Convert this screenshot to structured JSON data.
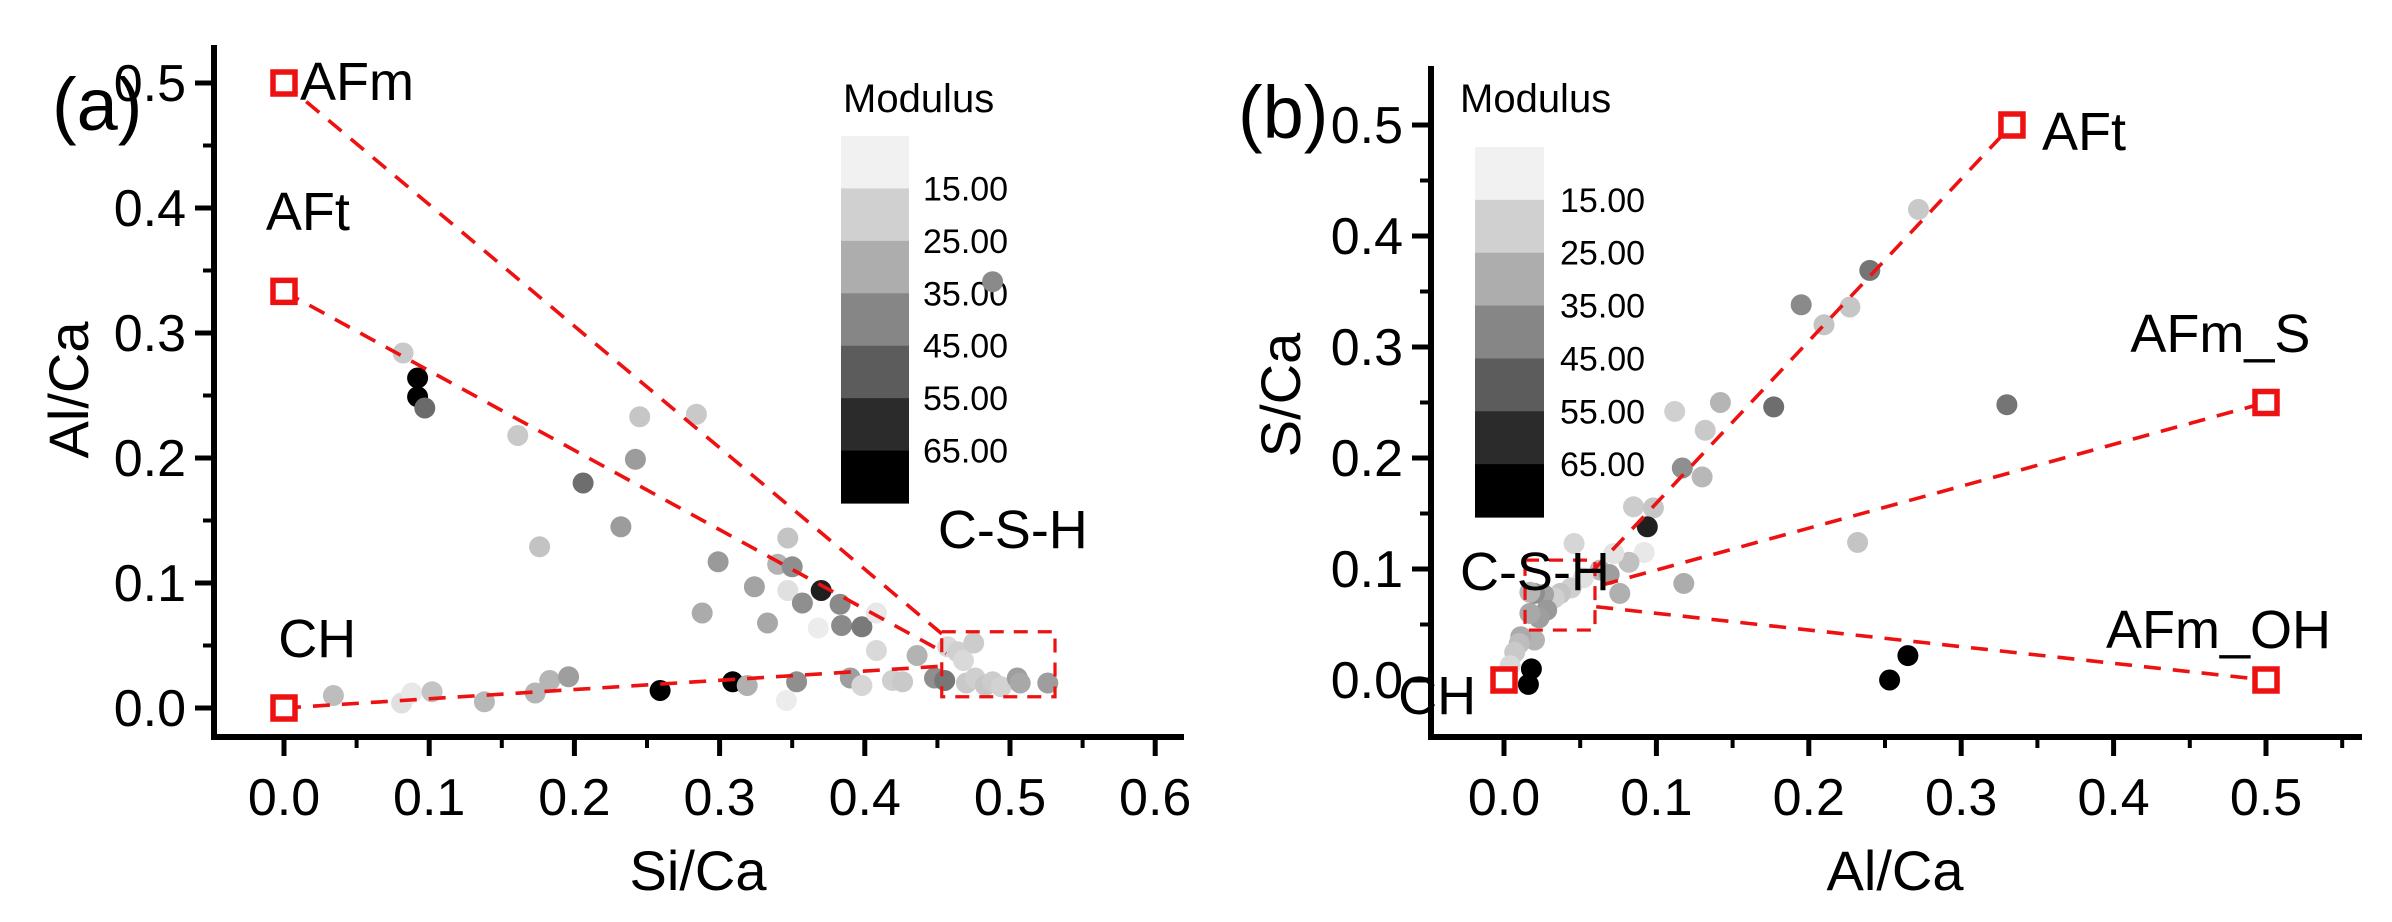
{
  "figure": {
    "background": "#ffffff",
    "accent_red": "#ee1111",
    "text_color": "#000000"
  },
  "chart_data": [
    {
      "id": "a",
      "type": "scatter",
      "panel_label": "(a)",
      "xlabel": "Si/Ca",
      "ylabel": "Al/Ca",
      "xlim": [
        -0.05,
        0.62
      ],
      "ylim": [
        -0.023,
        0.534
      ],
      "grid": false,
      "x_tick_values": [
        0.0,
        0.1,
        0.2,
        0.3,
        0.4,
        0.5,
        0.6
      ],
      "x_tick_labels": [
        "0.0",
        "0.1",
        "0.2",
        "0.3",
        "0.4",
        "0.5",
        "0.6"
      ],
      "x_minor_ticks": [
        0.05,
        0.15,
        0.25,
        0.35,
        0.45,
        0.55
      ],
      "y_tick_values": [
        0.0,
        0.1,
        0.2,
        0.3,
        0.4,
        0.5
      ],
      "y_tick_labels": [
        "0.0",
        "0.1",
        "0.2",
        "0.3",
        "0.4",
        "0.5"
      ],
      "y_minor_ticks": [
        0.05,
        0.15,
        0.25,
        0.35,
        0.45
      ],
      "colorbar": {
        "title": "Modulus",
        "boundary_labels": [
          "15.00",
          "25.00",
          "35.00",
          "45.00",
          "55.00",
          "65.00"
        ],
        "band_shades": [
          "#f1f1f1",
          "#d0d0d0",
          "#adadad",
          "#868686",
          "#5c5c5c",
          "#2b2b2b",
          "#000000"
        ]
      },
      "reference_points": [
        {
          "label": "AFm",
          "x": 0.0,
          "y": 0.5,
          "label_pos": [
            0.011,
            0.4865
          ]
        },
        {
          "label": "AFt",
          "x": 0.0,
          "y": 0.3333,
          "label_pos": [
            -0.0125,
            0.3825
          ]
        },
        {
          "label": "CH",
          "x": 0.0,
          "y": 0.0,
          "label_pos": [
            -0.004,
            0.0408
          ]
        }
      ],
      "tie_lines": [
        {
          "name": "AFm-to-CSH",
          "from": [
            0.0,
            0.5
          ],
          "to": [
            0.456,
            0.0565
          ]
        },
        {
          "name": "AFt-to-CSH",
          "from": [
            0.0,
            0.3333
          ],
          "to": [
            0.456,
            0.0435
          ]
        },
        {
          "name": "CH-to-CSH",
          "from": [
            0.0,
            0.0
          ],
          "to": [
            0.4535,
            0.0335
          ]
        }
      ],
      "csh_region": {
        "label": "C-S-H",
        "x_range": [
          0.453,
          0.531
        ],
        "y_range": [
          0.009,
          0.061
        ],
        "label_pos": [
          0.4503,
          0.128
        ]
      },
      "points": [
        [
          0.082,
          0.284,
          "#c9c9c9"
        ],
        [
          0.092,
          0.264,
          "#000000"
        ],
        [
          0.092,
          0.249,
          "#000000"
        ],
        [
          0.097,
          0.24,
          "#6b6b6b"
        ],
        [
          0.161,
          0.218,
          "#c9c9c9"
        ],
        [
          0.245,
          0.233,
          "#c6c6c6"
        ],
        [
          0.284,
          0.235,
          "#c9c9c9"
        ],
        [
          0.242,
          0.199,
          "#9c9c9c"
        ],
        [
          0.206,
          0.18,
          "#6e6e6e"
        ],
        [
          0.232,
          0.145,
          "#9c9c9c"
        ],
        [
          0.176,
          0.129,
          "#c3c3c3"
        ],
        [
          0.347,
          0.136,
          "#c4c4c4"
        ],
        [
          0.34,
          0.115,
          "#b3b3b3"
        ],
        [
          0.35,
          0.113,
          "#8f8f8f"
        ],
        [
          0.299,
          0.117,
          "#9a9a9a"
        ],
        [
          0.324,
          0.097,
          "#a3a3a3"
        ],
        [
          0.288,
          0.076,
          "#ababab"
        ],
        [
          0.347,
          0.094,
          "#e0e0e0"
        ],
        [
          0.37,
          0.094,
          "#1f1f1f"
        ],
        [
          0.357,
          0.084,
          "#8f8f8f"
        ],
        [
          0.383,
          0.083,
          "#8a8a8a"
        ],
        [
          0.384,
          0.066,
          "#8a8a8a"
        ],
        [
          0.398,
          0.065,
          "#7a7a7a"
        ],
        [
          0.333,
          0.068,
          "#a8a8a8"
        ],
        [
          0.368,
          0.064,
          "#ececec"
        ],
        [
          0.408,
          0.076,
          "#e8e8e8"
        ],
        [
          0.408,
          0.046,
          "#d9d9d9"
        ],
        [
          0.436,
          0.042,
          "#b3b3b3"
        ],
        [
          0.488,
          0.341,
          "#8a8a8a"
        ],
        [
          0.034,
          0.01,
          "#bdbdbd"
        ],
        [
          0.081,
          0.004,
          "#e0e0e0"
        ],
        [
          0.088,
          0.012,
          "#e8e8e8"
        ],
        [
          0.102,
          0.013,
          "#c4c4c4"
        ],
        [
          0.138,
          0.005,
          "#b8b8b8"
        ],
        [
          0.173,
          0.012,
          "#b5b5b5"
        ],
        [
          0.183,
          0.022,
          "#b5b5b5"
        ],
        [
          0.196,
          0.025,
          "#9e9e9e"
        ],
        [
          0.259,
          0.014,
          "#000000"
        ],
        [
          0.309,
          0.021,
          "#000000"
        ],
        [
          0.319,
          0.018,
          "#b0b0b0"
        ],
        [
          0.353,
          0.021,
          "#8f8f8f"
        ],
        [
          0.346,
          0.006,
          "#ececec"
        ],
        [
          0.39,
          0.024,
          "#9e9e9e"
        ],
        [
          0.398,
          0.018,
          "#d6d6d6"
        ],
        [
          0.419,
          0.022,
          "#cfcfcf"
        ],
        [
          0.426,
          0.021,
          "#c9c9c9"
        ],
        [
          0.448,
          0.024,
          "#8f8f8f"
        ],
        [
          0.457,
          0.049,
          "#d9d9d9"
        ],
        [
          0.464,
          0.045,
          "#d0d0d0"
        ],
        [
          0.468,
          0.038,
          "#d9d9d9"
        ],
        [
          0.475,
          0.052,
          "#cccccc"
        ],
        [
          0.455,
          0.022,
          "#777777"
        ],
        [
          0.47,
          0.02,
          "#c9c9c9"
        ],
        [
          0.476,
          0.024,
          "#cfcfcf"
        ],
        [
          0.483,
          0.018,
          "#c6c6c6"
        ],
        [
          0.488,
          0.021,
          "#cccccc"
        ],
        [
          0.494,
          0.017,
          "#d2d2d2"
        ],
        [
          0.505,
          0.024,
          "#9e9e9e"
        ],
        [
          0.507,
          0.02,
          "#a8a8a8"
        ],
        [
          0.526,
          0.02,
          "#9e9e9e"
        ]
      ]
    },
    {
      "id": "b",
      "type": "scatter",
      "panel_label": "(b)",
      "xlabel": "Al/Ca",
      "ylabel": "S/Ca",
      "xlim": [
        -0.05,
        0.563
      ],
      "ylim": [
        -0.051,
        0.551
      ],
      "grid": false,
      "x_tick_values": [
        0.0,
        0.1,
        0.2,
        0.3,
        0.4,
        0.5
      ],
      "x_tick_labels": [
        "0.0",
        "0.1",
        "0.2",
        "0.3",
        "0.4",
        "0.5"
      ],
      "x_minor_ticks": [
        0.05,
        0.15,
        0.25,
        0.35,
        0.45,
        0.55
      ],
      "y_tick_values": [
        0.0,
        0.1,
        0.2,
        0.3,
        0.4,
        0.5
      ],
      "y_tick_labels": [
        "0.0",
        "0.1",
        "0.2",
        "0.3",
        "0.4",
        "0.5"
      ],
      "y_minor_ticks": [
        0.05,
        0.15,
        0.25,
        0.35,
        0.45
      ],
      "colorbar": {
        "title": "Modulus",
        "boundary_labels": [
          "15.00",
          "25.00",
          "35.00",
          "45.00",
          "55.00",
          "65.00"
        ],
        "band_shades": [
          "#f1f1f1",
          "#d0d0d0",
          "#adadad",
          "#868686",
          "#5c5c5c",
          "#2b2b2b",
          "#000000"
        ]
      },
      "reference_points": [
        {
          "label": "AFt",
          "x": 0.3333,
          "y": 0.5,
          "label_pos": [
            0.353,
            0.4775
          ]
        },
        {
          "label": "AFm_S",
          "x": 0.5,
          "y": 0.25,
          "label_pos": [
            0.411,
            0.2955
          ]
        },
        {
          "label": "AFm_OH",
          "x": 0.5,
          "y": 0.0,
          "label_pos": [
            0.395,
            0.0288
          ]
        },
        {
          "label": "CH",
          "x": 0.0,
          "y": 0.0,
          "label_pos": [
            -0.0695,
            -0.0306
          ]
        }
      ],
      "tie_lines": [
        {
          "name": "CSH-to-AFt",
          "from": [
            0.058,
            0.098
          ],
          "to": [
            0.3333,
            0.5
          ]
        },
        {
          "name": "CSH-to-AFm_S",
          "from": [
            0.064,
            0.0855
          ],
          "to": [
            0.5,
            0.25
          ]
        },
        {
          "name": "CSH-to-AFm_OH",
          "from": [
            0.0605,
            0.066
          ],
          "to": [
            0.5,
            0.0
          ]
        }
      ],
      "csh_region": {
        "label": "C-S-H",
        "x_range": [
          0.0138,
          0.0597
        ],
        "y_range": [
          0.045,
          0.108
        ],
        "label_pos": [
          -0.0289,
          0.0812
        ]
      },
      "points": [
        [
          0.272,
          0.424,
          "#c9c9c9"
        ],
        [
          0.24,
          0.369,
          "#757575"
        ],
        [
          0.195,
          0.338,
          "#8a8a8a"
        ],
        [
          0.227,
          0.336,
          "#c6c6c6"
        ],
        [
          0.21,
          0.32,
          "#c4c4c4"
        ],
        [
          0.142,
          0.25,
          "#b5b5b5"
        ],
        [
          0.112,
          0.242,
          "#d0d0d0"
        ],
        [
          0.132,
          0.225,
          "#c9c9c9"
        ],
        [
          0.177,
          0.246,
          "#6e6e6e"
        ],
        [
          0.33,
          0.248,
          "#757575"
        ],
        [
          0.13,
          0.183,
          "#b8b8b8"
        ],
        [
          0.117,
          0.191,
          "#8f8f8f"
        ],
        [
          0.085,
          0.156,
          "#cccccc"
        ],
        [
          0.098,
          0.155,
          "#c6c6c6"
        ],
        [
          0.094,
          0.138,
          "#1f1f1f"
        ],
        [
          0.092,
          0.115,
          "#e8e8e8"
        ],
        [
          0.082,
          0.106,
          "#c0c0c0"
        ],
        [
          0.072,
          0.114,
          "#e3e3e3"
        ],
        [
          0.118,
          0.087,
          "#adadad"
        ],
        [
          0.232,
          0.124,
          "#c4c4c4"
        ],
        [
          0.076,
          0.078,
          "#b0b0b0"
        ],
        [
          0.063,
          0.099,
          "#b8b8b8"
        ],
        [
          0.069,
          0.095,
          "#9e9e9e"
        ],
        [
          0.052,
          0.092,
          "#e0e0e0"
        ],
        [
          0.046,
          0.123,
          "#d6d6d6"
        ],
        [
          0.044,
          0.083,
          "#cfcfcf"
        ],
        [
          0.037,
          0.078,
          "#c4c4c4"
        ],
        [
          0.033,
          0.074,
          "#d0d0d0"
        ],
        [
          0.026,
          0.077,
          "#a3a3a3"
        ],
        [
          0.02,
          0.078,
          "#8f8f8f"
        ],
        [
          0.017,
          0.079,
          "#b5b5b5"
        ],
        [
          0.028,
          0.063,
          "#999999"
        ],
        [
          0.023,
          0.056,
          "#9e9e9e"
        ],
        [
          0.017,
          0.06,
          "#a8a8a8"
        ],
        [
          0.02,
          0.036,
          "#b3b3b3"
        ],
        [
          0.011,
          0.039,
          "#ababab"
        ],
        [
          0.01,
          0.033,
          "#bdbdbd"
        ],
        [
          0.007,
          0.025,
          "#c9c9c9"
        ],
        [
          0.004,
          0.013,
          "#d9d9d9"
        ],
        [
          0.018,
          0.01,
          "#000000"
        ],
        [
          0.016,
          -0.004,
          "#000000"
        ],
        [
          0.253,
          0.0,
          "#000000"
        ],
        [
          0.265,
          0.022,
          "#000000"
        ]
      ]
    }
  ]
}
